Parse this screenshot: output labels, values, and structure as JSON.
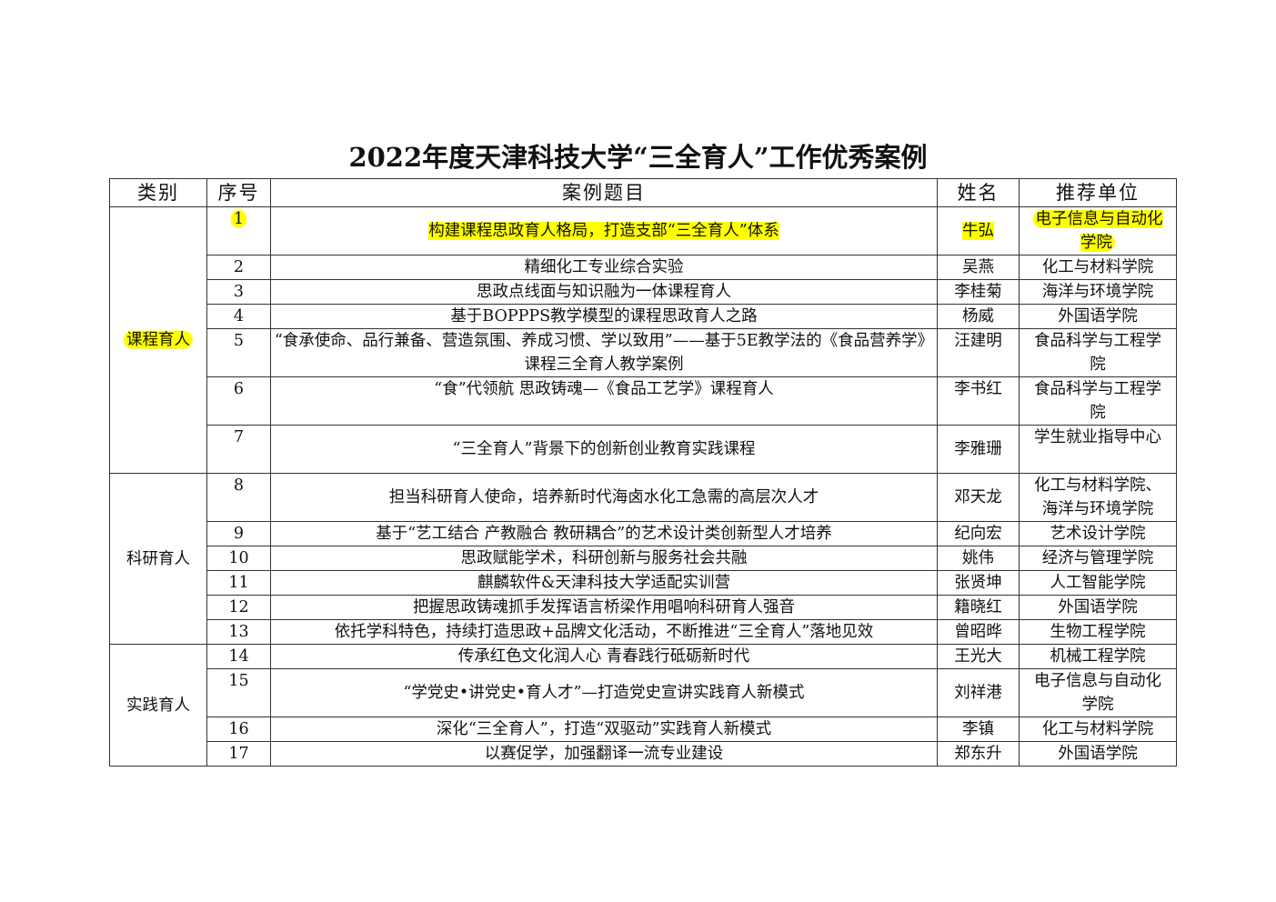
{
  "title": "2022年度天津科技大学“三全育人”工作优秀案例",
  "highlight_color": "#ffff00",
  "columns": [
    "类别",
    "序号",
    "案例题目",
    "姓名",
    "推荐单位"
  ],
  "groups": [
    {
      "category": "课程育人",
      "highlighted": true,
      "rows": [
        {
          "no": "1",
          "title": "构建课程思政育人格局，打造支部“三全育人”体系",
          "name": "牛弘",
          "unit": "电子信息与自动化学院",
          "highlighted": true
        },
        {
          "no": "2",
          "title": "精细化工专业综合实验",
          "name": "吴燕",
          "unit": "化工与材料学院"
        },
        {
          "no": "3",
          "title": "思政点线面与知识融为一体课程育人",
          "name": "李桂菊",
          "unit": "海洋与环境学院"
        },
        {
          "no": "4",
          "title": "基于BOPPPS教学模型的课程思政育人之路",
          "name": "杨威",
          "unit": "外国语学院"
        },
        {
          "no": "5",
          "title": "“食承使命、品行兼备、营造氛围、养成习惯、学以致用”——基于5E教学法的《食品营养学》课程三全育人教学案例",
          "name": "汪建明",
          "unit": "食品科学与工程学院"
        },
        {
          "no": "6",
          "title": "“食”代领航 思政铸魂—《食品工艺学》课程育人",
          "name": "李书红",
          "unit": "食品科学与工程学院"
        },
        {
          "no": "7",
          "title": "“三全育人”背景下的创新创业教育实践课程",
          "name": "李雅珊",
          "unit": "学生就业指导中心"
        }
      ]
    },
    {
      "category": "科研育人",
      "rows": [
        {
          "no": "8",
          "title": "担当科研育人使命，培养新时代海卤水化工急需的高层次人才",
          "name": "邓天龙",
          "unit": "化工与材料学院、海洋与环境学院"
        },
        {
          "no": "9",
          "title": "基于“艺工结合 产教融合 教研耦合”的艺术设计类创新型人才培养",
          "name": "纪向宏",
          "unit": "艺术设计学院"
        },
        {
          "no": "10",
          "title": "思政赋能学术，科研创新与服务社会共融",
          "name": "姚伟",
          "unit": "经济与管理学院"
        },
        {
          "no": "11",
          "title": "麒麟软件&天津科技大学适配实训营",
          "name": "张贤坤",
          "unit": "人工智能学院"
        },
        {
          "no": "12",
          "title": "把握思政铸魂抓手发挥语言桥梁作用唱响科研育人强音",
          "name": "籍晓红",
          "unit": "外国语学院"
        },
        {
          "no": "13",
          "title": "依托学科特色，持续打造思政+品牌文化活动，不断推进“三全育人”落地见效",
          "name": "曾昭晔",
          "unit": "生物工程学院"
        }
      ]
    },
    {
      "category": "实践育人",
      "rows": [
        {
          "no": "14",
          "title": "传承红色文化润人心 青春践行砥砺新时代",
          "name": "王光大",
          "unit": "机械工程学院"
        },
        {
          "no": "15",
          "title": "“学党史•讲党史•育人才”—打造党史宣讲实践育人新模式",
          "name": "刘祥港",
          "unit": "电子信息与自动化学院"
        },
        {
          "no": "16",
          "title": "深化“三全育人”，打造“双驱动”实践育人新模式",
          "name": "李镇",
          "unit": "化工与材料学院"
        },
        {
          "no": "17",
          "title": "以赛促学，加强翻译一流专业建设",
          "name": "郑东升",
          "unit": "外国语学院"
        }
      ]
    }
  ]
}
